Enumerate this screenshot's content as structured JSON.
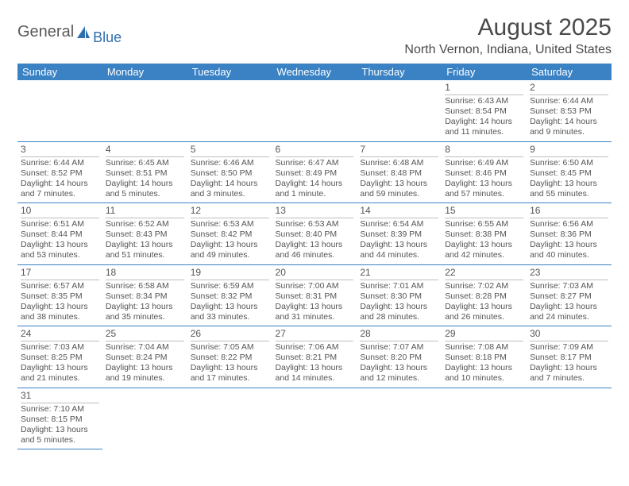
{
  "brand": {
    "word1": "General",
    "word2": "Blue"
  },
  "title": "August 2025",
  "location": "North Vernon, Indiana, United States",
  "colors": {
    "header_bg": "#3b82c4",
    "header_fg": "#ffffff",
    "rule": "#3b82c4",
    "daynum_rule": "#bfbfbf",
    "text": "#4a4a4a",
    "logo_blue": "#2f6fb0"
  },
  "weekdays": [
    "Sunday",
    "Monday",
    "Tuesday",
    "Wednesday",
    "Thursday",
    "Friday",
    "Saturday"
  ],
  "weeks": [
    [
      null,
      null,
      null,
      null,
      null,
      {
        "n": "1",
        "sr": "Sunrise: 6:43 AM",
        "ss": "Sunset: 8:54 PM",
        "d1": "Daylight: 14 hours",
        "d2": "and 11 minutes."
      },
      {
        "n": "2",
        "sr": "Sunrise: 6:44 AM",
        "ss": "Sunset: 8:53 PM",
        "d1": "Daylight: 14 hours",
        "d2": "and 9 minutes."
      }
    ],
    [
      {
        "n": "3",
        "sr": "Sunrise: 6:44 AM",
        "ss": "Sunset: 8:52 PM",
        "d1": "Daylight: 14 hours",
        "d2": "and 7 minutes."
      },
      {
        "n": "4",
        "sr": "Sunrise: 6:45 AM",
        "ss": "Sunset: 8:51 PM",
        "d1": "Daylight: 14 hours",
        "d2": "and 5 minutes."
      },
      {
        "n": "5",
        "sr": "Sunrise: 6:46 AM",
        "ss": "Sunset: 8:50 PM",
        "d1": "Daylight: 14 hours",
        "d2": "and 3 minutes."
      },
      {
        "n": "6",
        "sr": "Sunrise: 6:47 AM",
        "ss": "Sunset: 8:49 PM",
        "d1": "Daylight: 14 hours",
        "d2": "and 1 minute."
      },
      {
        "n": "7",
        "sr": "Sunrise: 6:48 AM",
        "ss": "Sunset: 8:48 PM",
        "d1": "Daylight: 13 hours",
        "d2": "and 59 minutes."
      },
      {
        "n": "8",
        "sr": "Sunrise: 6:49 AM",
        "ss": "Sunset: 8:46 PM",
        "d1": "Daylight: 13 hours",
        "d2": "and 57 minutes."
      },
      {
        "n": "9",
        "sr": "Sunrise: 6:50 AM",
        "ss": "Sunset: 8:45 PM",
        "d1": "Daylight: 13 hours",
        "d2": "and 55 minutes."
      }
    ],
    [
      {
        "n": "10",
        "sr": "Sunrise: 6:51 AM",
        "ss": "Sunset: 8:44 PM",
        "d1": "Daylight: 13 hours",
        "d2": "and 53 minutes."
      },
      {
        "n": "11",
        "sr": "Sunrise: 6:52 AM",
        "ss": "Sunset: 8:43 PM",
        "d1": "Daylight: 13 hours",
        "d2": "and 51 minutes."
      },
      {
        "n": "12",
        "sr": "Sunrise: 6:53 AM",
        "ss": "Sunset: 8:42 PM",
        "d1": "Daylight: 13 hours",
        "d2": "and 49 minutes."
      },
      {
        "n": "13",
        "sr": "Sunrise: 6:53 AM",
        "ss": "Sunset: 8:40 PM",
        "d1": "Daylight: 13 hours",
        "d2": "and 46 minutes."
      },
      {
        "n": "14",
        "sr": "Sunrise: 6:54 AM",
        "ss": "Sunset: 8:39 PM",
        "d1": "Daylight: 13 hours",
        "d2": "and 44 minutes."
      },
      {
        "n": "15",
        "sr": "Sunrise: 6:55 AM",
        "ss": "Sunset: 8:38 PM",
        "d1": "Daylight: 13 hours",
        "d2": "and 42 minutes."
      },
      {
        "n": "16",
        "sr": "Sunrise: 6:56 AM",
        "ss": "Sunset: 8:36 PM",
        "d1": "Daylight: 13 hours",
        "d2": "and 40 minutes."
      }
    ],
    [
      {
        "n": "17",
        "sr": "Sunrise: 6:57 AM",
        "ss": "Sunset: 8:35 PM",
        "d1": "Daylight: 13 hours",
        "d2": "and 38 minutes."
      },
      {
        "n": "18",
        "sr": "Sunrise: 6:58 AM",
        "ss": "Sunset: 8:34 PM",
        "d1": "Daylight: 13 hours",
        "d2": "and 35 minutes."
      },
      {
        "n": "19",
        "sr": "Sunrise: 6:59 AM",
        "ss": "Sunset: 8:32 PM",
        "d1": "Daylight: 13 hours",
        "d2": "and 33 minutes."
      },
      {
        "n": "20",
        "sr": "Sunrise: 7:00 AM",
        "ss": "Sunset: 8:31 PM",
        "d1": "Daylight: 13 hours",
        "d2": "and 31 minutes."
      },
      {
        "n": "21",
        "sr": "Sunrise: 7:01 AM",
        "ss": "Sunset: 8:30 PM",
        "d1": "Daylight: 13 hours",
        "d2": "and 28 minutes."
      },
      {
        "n": "22",
        "sr": "Sunrise: 7:02 AM",
        "ss": "Sunset: 8:28 PM",
        "d1": "Daylight: 13 hours",
        "d2": "and 26 minutes."
      },
      {
        "n": "23",
        "sr": "Sunrise: 7:03 AM",
        "ss": "Sunset: 8:27 PM",
        "d1": "Daylight: 13 hours",
        "d2": "and 24 minutes."
      }
    ],
    [
      {
        "n": "24",
        "sr": "Sunrise: 7:03 AM",
        "ss": "Sunset: 8:25 PM",
        "d1": "Daylight: 13 hours",
        "d2": "and 21 minutes."
      },
      {
        "n": "25",
        "sr": "Sunrise: 7:04 AM",
        "ss": "Sunset: 8:24 PM",
        "d1": "Daylight: 13 hours",
        "d2": "and 19 minutes."
      },
      {
        "n": "26",
        "sr": "Sunrise: 7:05 AM",
        "ss": "Sunset: 8:22 PM",
        "d1": "Daylight: 13 hours",
        "d2": "and 17 minutes."
      },
      {
        "n": "27",
        "sr": "Sunrise: 7:06 AM",
        "ss": "Sunset: 8:21 PM",
        "d1": "Daylight: 13 hours",
        "d2": "and 14 minutes."
      },
      {
        "n": "28",
        "sr": "Sunrise: 7:07 AM",
        "ss": "Sunset: 8:20 PM",
        "d1": "Daylight: 13 hours",
        "d2": "and 12 minutes."
      },
      {
        "n": "29",
        "sr": "Sunrise: 7:08 AM",
        "ss": "Sunset: 8:18 PM",
        "d1": "Daylight: 13 hours",
        "d2": "and 10 minutes."
      },
      {
        "n": "30",
        "sr": "Sunrise: 7:09 AM",
        "ss": "Sunset: 8:17 PM",
        "d1": "Daylight: 13 hours",
        "d2": "and 7 minutes."
      }
    ],
    [
      {
        "n": "31",
        "sr": "Sunrise: 7:10 AM",
        "ss": "Sunset: 8:15 PM",
        "d1": "Daylight: 13 hours",
        "d2": "and 5 minutes."
      },
      null,
      null,
      null,
      null,
      null,
      null
    ]
  ]
}
